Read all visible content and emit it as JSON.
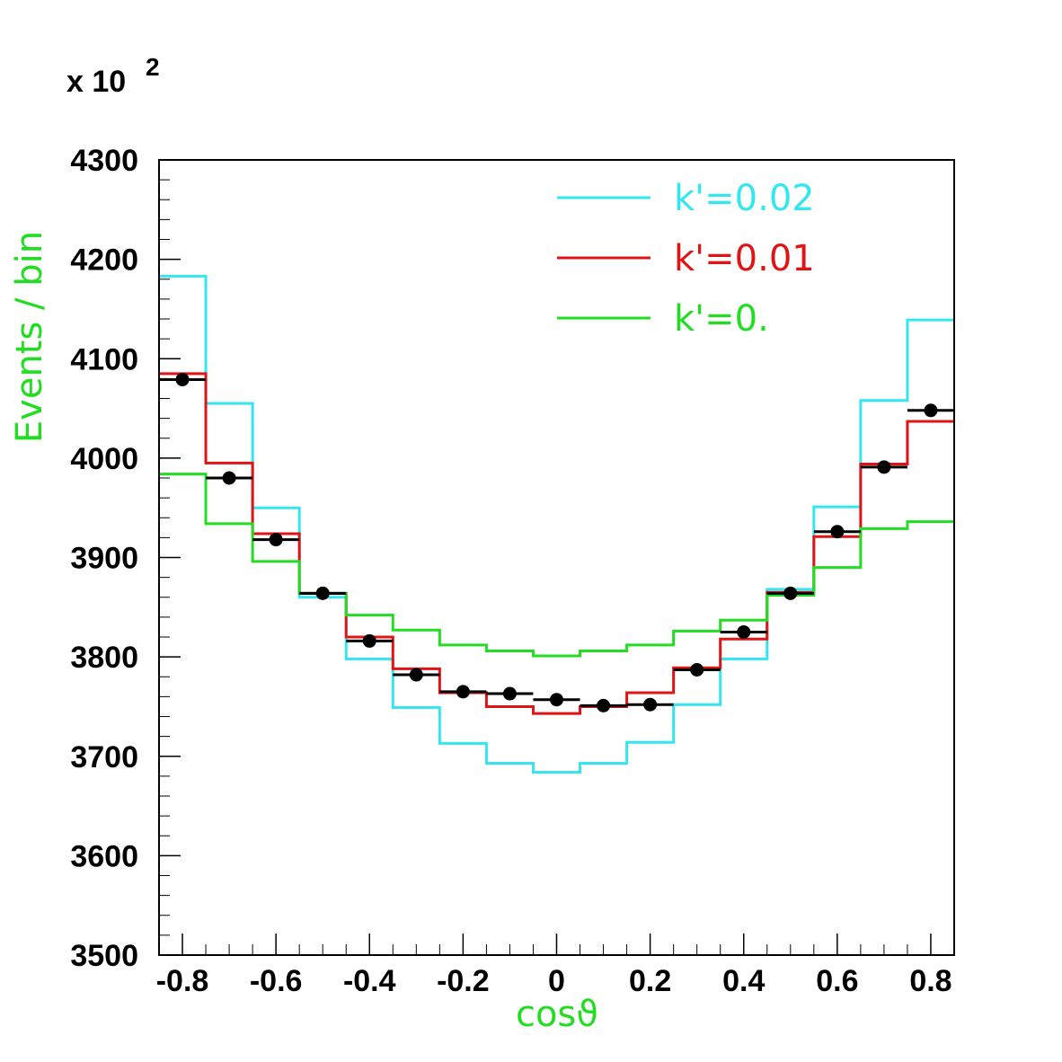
{
  "chart_data": {
    "type": "line",
    "scale_factor": {
      "prefix": "x 10",
      "exponent": "2"
    },
    "xlabel": "cosϑ",
    "ylabel": "Events / bin",
    "xlim": [
      -0.85,
      0.85
    ],
    "ylim": [
      3500,
      4300
    ],
    "x_ticks": [
      -0.8,
      -0.6,
      -0.4,
      -0.2,
      0,
      0.2,
      0.4,
      0.6,
      0.8
    ],
    "x_tick_labels": [
      "-0.8",
      "-0.6",
      "-0.4",
      "-0.2",
      "0",
      "0.2",
      "0.4",
      "0.6",
      "0.8"
    ],
    "y_ticks": [
      3500,
      3600,
      3700,
      3800,
      3900,
      4000,
      4100,
      4200,
      4300
    ],
    "y_tick_labels": [
      "3500",
      "3600",
      "3700",
      "3800",
      "3900",
      "4000",
      "4100",
      "4200",
      "4300"
    ],
    "bin_edges": [
      -0.85,
      -0.75,
      -0.65,
      -0.55,
      -0.45,
      -0.35,
      -0.25,
      -0.15,
      -0.05,
      0.05,
      0.15,
      0.25,
      0.35,
      0.45,
      0.55,
      0.65,
      0.75,
      0.85
    ],
    "series": [
      {
        "name": "k'=0.02",
        "color": "#33e6f0",
        "style": "step",
        "values": [
          4183,
          4055,
          3950,
          3860,
          3798,
          3749,
          3713,
          3693,
          3684,
          3693,
          3714,
          3752,
          3798,
          3868,
          3951,
          4058,
          4139
        ]
      },
      {
        "name": "k'=0.01",
        "color": "#e01414",
        "style": "step",
        "values": [
          4085,
          3995,
          3924,
          3864,
          3820,
          3788,
          3764,
          3750,
          3743,
          3750,
          3764,
          3789,
          3818,
          3865,
          3921,
          3994,
          4037
        ]
      },
      {
        "name": "k'=0.",
        "color": "#22dd22",
        "style": "step",
        "values": [
          3984,
          3934,
          3896,
          3864,
          3842,
          3827,
          3812,
          3806,
          3801,
          3806,
          3812,
          3826,
          3837,
          3862,
          3890,
          3929,
          3936
        ]
      },
      {
        "name": "",
        "color": "#000000",
        "style": "points",
        "values": [
          4079,
          3980,
          3918,
          3864,
          3816,
          3782,
          3765,
          3763,
          3757,
          3751,
          3752,
          3787,
          3825,
          3864,
          3926,
          3991,
          4048
        ]
      }
    ],
    "legend": {
      "position": "top-right"
    }
  }
}
